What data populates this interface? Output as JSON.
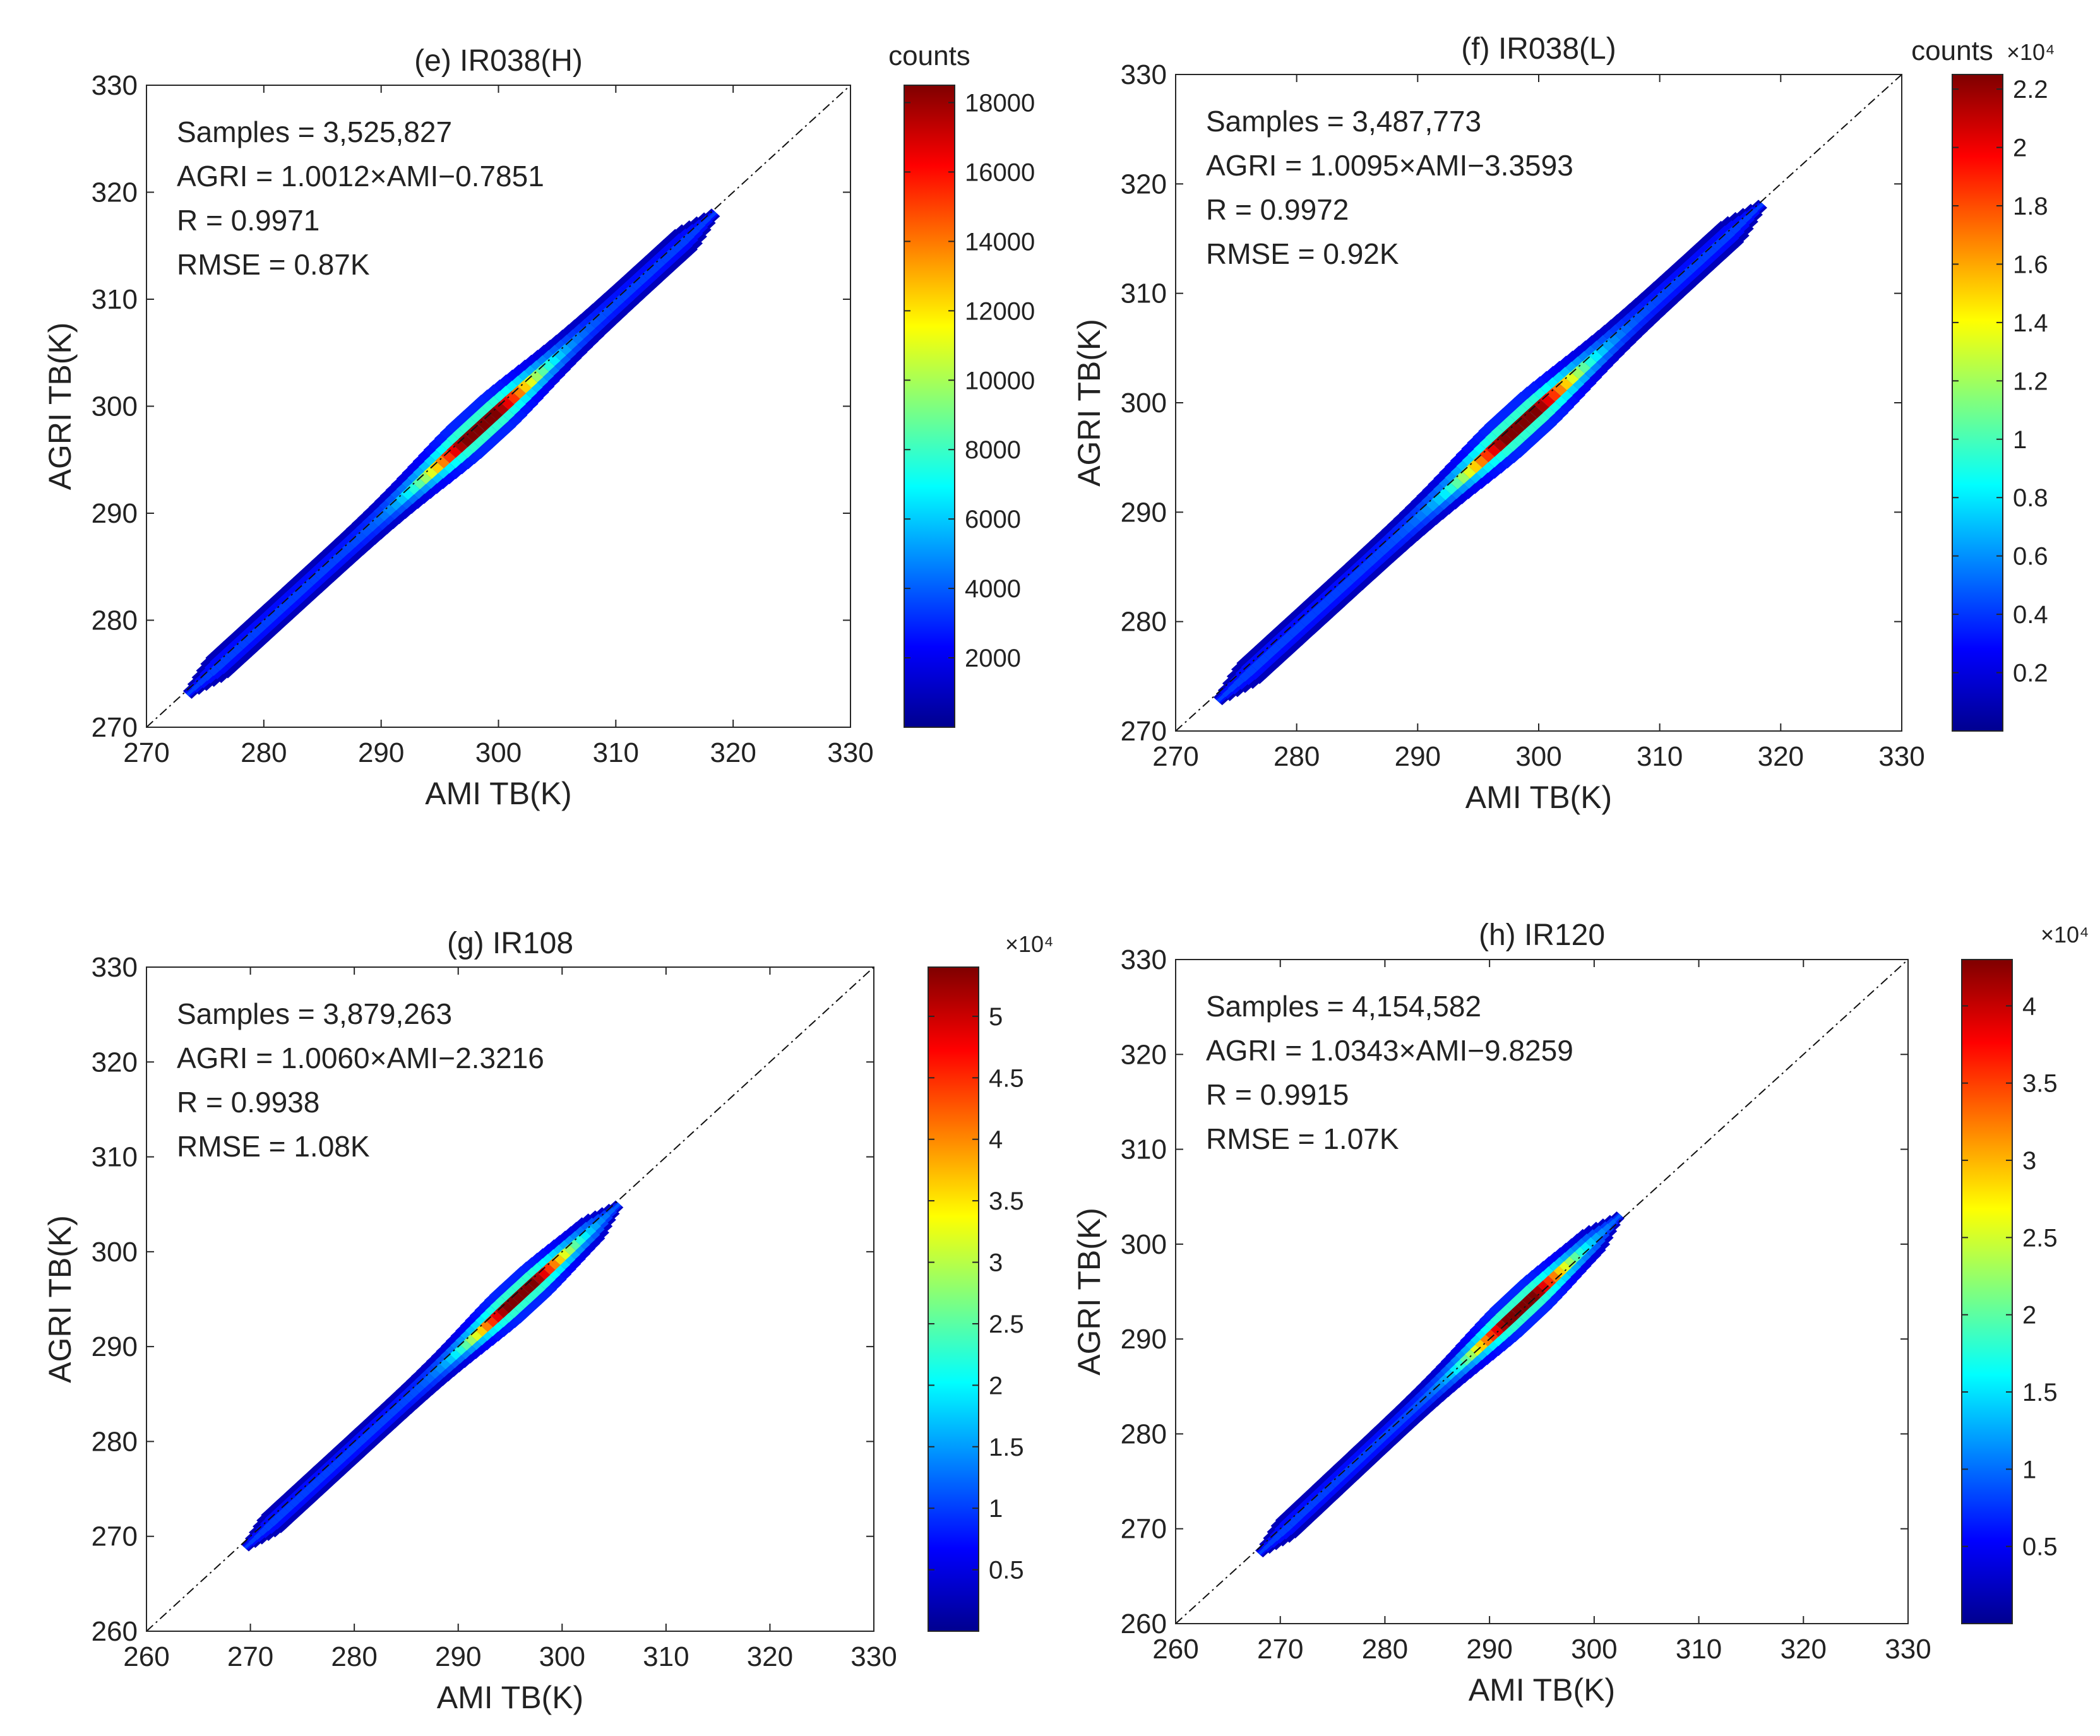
{
  "colormap": [
    "#00008f",
    "#0000ff",
    "#007fff",
    "#00ffff",
    "#7fff7f",
    "#ffff00",
    "#ff7f00",
    "#ff0000",
    "#7f0000"
  ],
  "chart_data": [
    {
      "id": "e",
      "type": "heatmap",
      "title": "(e)  IR038(H)",
      "xlabel": "AMI TB(K)",
      "ylabel": "AGRI TB(K)",
      "xlim": [
        270,
        330
      ],
      "ylim": [
        270,
        330
      ],
      "xticks": [
        "270",
        "280",
        "290",
        "300",
        "310",
        "320",
        "330"
      ],
      "yticks": [
        "270",
        "280",
        "290",
        "300",
        "310",
        "320",
        "330"
      ],
      "stats": [
        "Samples = 3,525,827",
        "AGRI = 1.0012×AMI−0.7851",
        "R = 0.9971",
        "RMSE = 0.87K"
      ],
      "colorbar": {
        "label": "counts",
        "exponent": "",
        "range": [
          0,
          18500
        ],
        "ticks": [
          2000,
          4000,
          6000,
          8000,
          10000,
          12000,
          14000,
          16000,
          18000
        ],
        "ticklabels": [
          "2000",
          "4000",
          "6000",
          "8000",
          "10000",
          "12000",
          "14000",
          "16000",
          "18000"
        ]
      },
      "fit": {
        "slope": 1.0012,
        "intercept": -0.7851
      },
      "data_range": [
        273.5,
        318.5
      ],
      "hotspots": [
        {
          "x": 298.5,
          "y": 297.0,
          "intensity": 1.0
        }
      ]
    },
    {
      "id": "f",
      "type": "heatmap",
      "title": "(f)  IR038(L)",
      "xlabel": "AMI TB(K)",
      "ylabel": "AGRI TB(K)",
      "xlim": [
        270,
        330
      ],
      "ylim": [
        270,
        330
      ],
      "xticks": [
        "270",
        "280",
        "290",
        "300",
        "310",
        "320",
        "330"
      ],
      "yticks": [
        "270",
        "280",
        "290",
        "300",
        "310",
        "320",
        "330"
      ],
      "stats": [
        "Samples = 3,487,773",
        "AGRI = 1.0095×AMI−3.3593",
        "R = 0.9972",
        "RMSE = 0.92K"
      ],
      "colorbar": {
        "label": "counts",
        "exponent": "×10⁴",
        "range": [
          0,
          2.25
        ],
        "ticks": [
          0.2,
          0.4,
          0.6,
          0.8,
          1,
          1.2,
          1.4,
          1.6,
          1.8,
          2,
          2.2
        ],
        "ticklabels": [
          "0.2",
          "0.4",
          "0.6",
          "0.8",
          "1",
          "1.2",
          "1.4",
          "1.6",
          "1.8",
          "2",
          "2.2"
        ]
      },
      "fit": {
        "slope": 1.0095,
        "intercept": -3.3593
      },
      "data_range": [
        273.5,
        318.5
      ],
      "hotspots": [
        {
          "x": 298.5,
          "y": 297.0,
          "intensity": 1.0
        }
      ]
    },
    {
      "id": "g",
      "type": "heatmap",
      "title": "(g)  IR108",
      "xlabel": "AMI TB(K)",
      "ylabel": "AGRI TB(K)",
      "xlim": [
        260,
        330
      ],
      "ylim": [
        260,
        330
      ],
      "xticks": [
        "260",
        "270",
        "280",
        "290",
        "300",
        "310",
        "320",
        "330"
      ],
      "yticks": [
        "260",
        "270",
        "280",
        "290",
        "300",
        "310",
        "320",
        "330"
      ],
      "stats": [
        "Samples = 3,879,263",
        "AGRI = 1.0060×AMI−2.3216",
        "R = 0.9938",
        "RMSE = 1.08K"
      ],
      "colorbar": {
        "label": "",
        "exponent": "×10⁴",
        "range": [
          0,
          5.4
        ],
        "ticks": [
          0.5,
          1,
          1.5,
          2,
          2.5,
          3,
          3.5,
          4,
          4.5,
          5
        ],
        "ticklabels": [
          "0.5",
          "1",
          "1.5",
          "2",
          "2.5",
          "3",
          "3.5",
          "4",
          "4.5",
          "5"
        ]
      },
      "fit": {
        "slope": 1.006,
        "intercept": -2.3216
      },
      "data_range": [
        269.5,
        305.5
      ],
      "hotspots": [
        {
          "x": 296.0,
          "y": 295.5,
          "intensity": 1.0
        }
      ]
    },
    {
      "id": "h",
      "type": "heatmap",
      "title": "(h)  IR120",
      "xlabel": "AMI TB(K)",
      "ylabel": "AGRI TB(K)",
      "xlim": [
        260,
        330
      ],
      "ylim": [
        260,
        330
      ],
      "xticks": [
        "260",
        "270",
        "280",
        "290",
        "300",
        "310",
        "320",
        "330"
      ],
      "yticks": [
        "260",
        "270",
        "280",
        "290",
        "300",
        "310",
        "320",
        "330"
      ],
      "stats": [
        "Samples = 4,154,582",
        "AGRI = 1.0343×AMI−9.8259",
        "R = 0.9915",
        "RMSE = 1.07K"
      ],
      "colorbar": {
        "label": "",
        "exponent": "×10⁴",
        "range": [
          0,
          4.3
        ],
        "ticks": [
          0.5,
          1,
          1.5,
          2,
          2.5,
          3,
          3.5,
          4
        ],
        "ticklabels": [
          "0.5",
          "1",
          "1.5",
          "2",
          "2.5",
          "3",
          "3.5",
          "4"
        ]
      },
      "fit": {
        "slope": 1.0343,
        "intercept": -9.8259
      },
      "data_range": [
        268.0,
        302.5
      ],
      "hotspots": [
        {
          "x": 293.0,
          "y": 293.5,
          "intensity": 1.0
        }
      ]
    }
  ]
}
